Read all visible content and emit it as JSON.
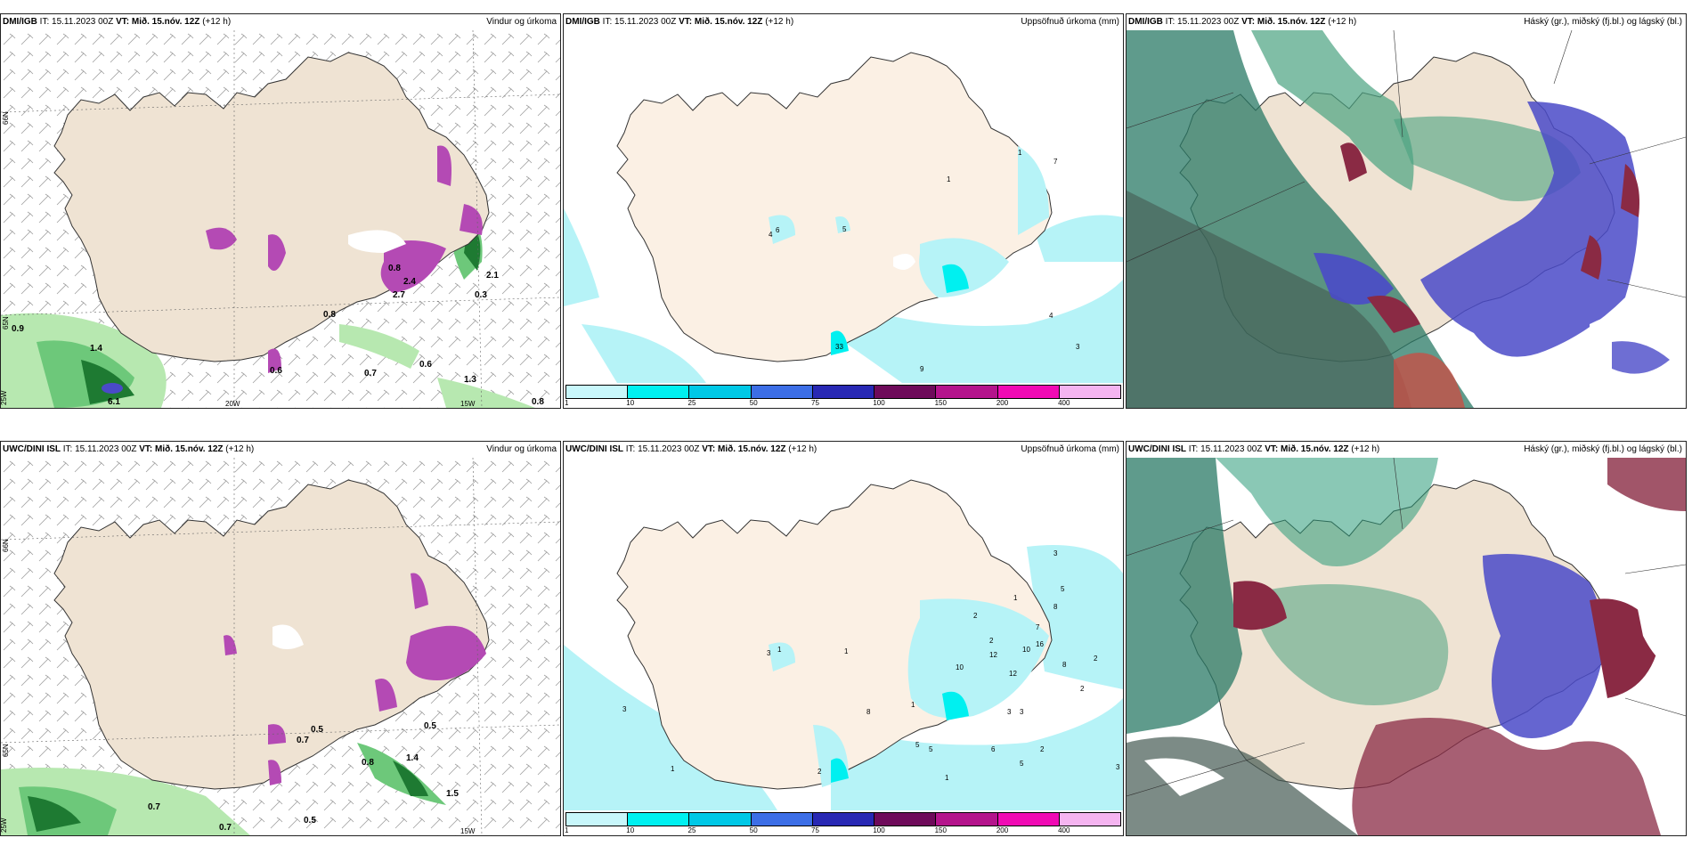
{
  "panels": [
    {
      "model": "DMI/IGB",
      "it_label": "IT:",
      "it_value": "15.11.2023 00Z",
      "vt_label": "VT:",
      "vt_value": "Mið. 15.nóv. 12Z",
      "lead": "(+12 h)",
      "title": "Vindur og úrkoma"
    },
    {
      "model": "DMI/IGB",
      "it_label": "IT:",
      "it_value": "15.11.2023 00Z",
      "vt_label": "VT:",
      "vt_value": "Mið. 15.nóv. 12Z",
      "lead": "(+12 h)",
      "title": "Uppsöfnuð úrkoma (mm)"
    },
    {
      "model": "DMI/IGB",
      "it_label": "IT:",
      "it_value": "15.11.2023 00Z",
      "vt_label": "VT:",
      "vt_value": "Mið. 15.nóv. 12Z",
      "lead": "(+12 h)",
      "title": "Háský (gr.), miðský (fj.bl.) og lágský (bl.)"
    },
    {
      "model": "UWC/DINI ISL",
      "it_label": "IT:",
      "it_value": "15.11.2023 00Z",
      "vt_label": "VT:",
      "vt_value": "Mið. 15.nóv. 12Z",
      "lead": "(+12 h)",
      "title": "Vindur og úrkoma"
    },
    {
      "model": "UWC/DINI ISL",
      "it_label": "IT:",
      "it_value": "15.11.2023 00Z",
      "vt_label": "VT:",
      "vt_value": "Mið. 15.nóv. 12Z",
      "lead": "(+12 h)",
      "title": "Uppsöfnuð úrkoma (mm)"
    },
    {
      "model": "UWC/DINI ISL",
      "it_label": "IT:",
      "it_value": "15.11.2023 00Z",
      "vt_label": "VT:",
      "vt_value": "Mið. 15.nóv. 12Z",
      "lead": "(+12 h)",
      "title": "Háský (gr.), miðský (fj.bl.) og lágský (bl.)"
    }
  ],
  "colorbar": {
    "labels": [
      "1",
      "10",
      "25",
      "50",
      "75",
      "100",
      "150",
      "200",
      "400"
    ],
    "colors": [
      "#c8f7fb",
      "#00f0f0",
      "#00c8e6",
      "#3c6ee6",
      "#2828b4",
      "#6e0a5a",
      "#b4148c",
      "#f00ab4",
      "#f5b4f0"
    ]
  },
  "axis_labels": {
    "lat65": "65N",
    "lat66": "66N",
    "lon25": "25W",
    "lon20": "20W",
    "lon15": "15W"
  },
  "colors": {
    "land": "#efe3d3",
    "accum_land": "#fbf0e4",
    "ocean": "#ffffff",
    "precip_light": "#b7e8b0",
    "precip_mid": "#6dc87a",
    "precip_dark": "#1e7a32",
    "snow": "#b44ab4",
    "accum_light": "#b6f3f7",
    "cloud_high": "#5a9a82",
    "cloud_mid": "#4a4ac8",
    "cloud_low": "#8a2a44"
  },
  "wind_values": {
    "top": [
      "0.9",
      "1.4",
      "6.1",
      "0.7",
      "0.6",
      "0.8",
      "2.1",
      "0.3",
      "2.4",
      "2.7",
      "0.8",
      "1.3",
      "0.6",
      "0.8"
    ],
    "bottom": [
      "0.7",
      "0.7",
      "0.5",
      "0.8",
      "1.4",
      "0.5",
      "1.5",
      "0.5",
      "0.7"
    ]
  },
  "accum_values": {
    "top": [
      "6",
      "5",
      "1",
      "1",
      "7",
      "4",
      "3",
      "9",
      "33",
      "4"
    ],
    "bottom": [
      "3",
      "1",
      "1",
      "3",
      "1",
      "1",
      "2",
      "3",
      "5",
      "8",
      "7",
      "2",
      "12",
      "10",
      "16",
      "12",
      "8",
      "2",
      "2",
      "10",
      "8",
      "1",
      "5",
      "5",
      "3",
      "3",
      "6",
      "2",
      "5",
      "1",
      "3",
      "2"
    ]
  }
}
